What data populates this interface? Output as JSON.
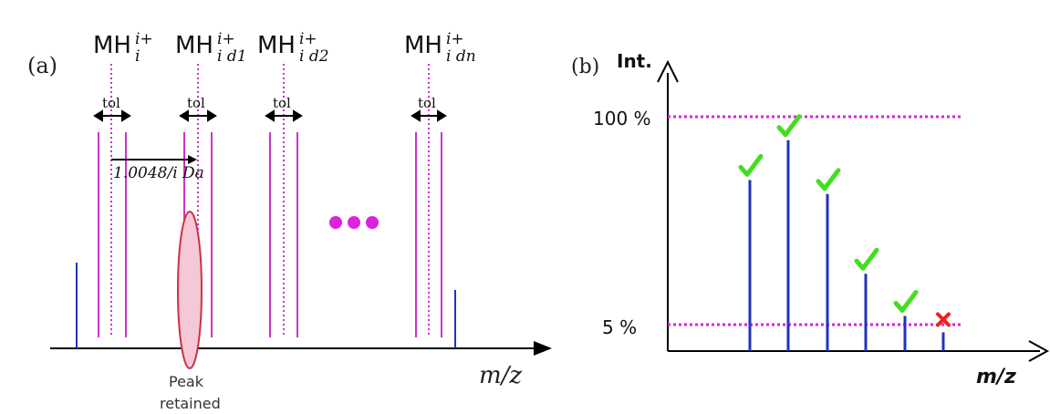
{
  "panel_a": {
    "label": "(a)",
    "peaks": [
      {
        "base": "MH",
        "sup": "i+",
        "sub": "i"
      },
      {
        "base": "MH",
        "sup": "i+",
        "sub": "i d1"
      },
      {
        "base": "MH",
        "sup": "i+",
        "sub": "i d2"
      },
      {
        "base": "MH",
        "sup": "i+",
        "sub": "i dn"
      }
    ],
    "tol_label": "tol",
    "shift_label": "1.0048/i Da",
    "annotation_line1": "Peak",
    "annotation_line2": "retained",
    "axis_label": "m/z",
    "colors": {
      "window": "#cc33cc",
      "peak": "#2233bb",
      "ellipse": "#cc3344",
      "dots": "#dd22dd"
    }
  },
  "panel_b": {
    "label": "(b)",
    "y_axis_label": "Int.",
    "threshold_high_label": "100 %",
    "threshold_low_label": "5 %",
    "axis_label": "m/z",
    "bar_relative_heights": [
      0.73,
      0.9,
      0.67,
      0.33,
      0.15,
      0.08
    ],
    "bar_status": [
      "check",
      "check",
      "check",
      "check",
      "check",
      "cross"
    ],
    "colors": {
      "threshold": "#dd22dd",
      "bar": "#2233bb",
      "check": "#44dd22",
      "cross": "#ee2222"
    }
  }
}
